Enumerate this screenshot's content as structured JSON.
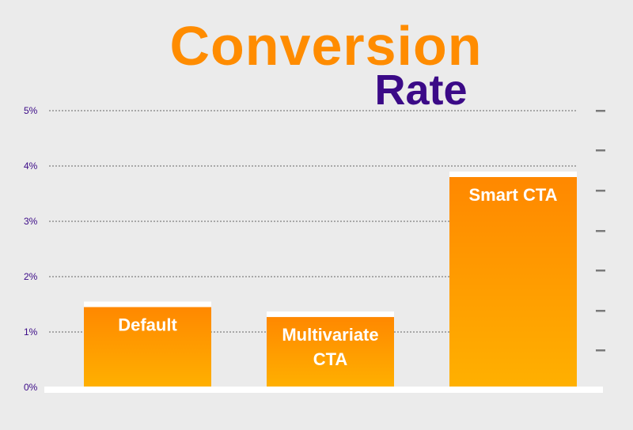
{
  "chart_data": {
    "type": "bar",
    "title_line1": "Conversion",
    "title_line2": "Rate",
    "categories": [
      "Default",
      "Multivariate\nCTA",
      "Smart CTA"
    ],
    "values": [
      1.45,
      1.27,
      3.8
    ],
    "unit": "%",
    "ylim": [
      0,
      5
    ],
    "yticks": [
      "0%",
      "1%",
      "2%",
      "3%",
      "4%",
      "5%"
    ],
    "grid": true,
    "colors": {
      "bar_top": "#ff8800",
      "bar_bottom": "#ffb000",
      "bar_cap": "#ffffff",
      "title_orange": "#ff8c00",
      "title_purple": "#3b0a87"
    }
  }
}
